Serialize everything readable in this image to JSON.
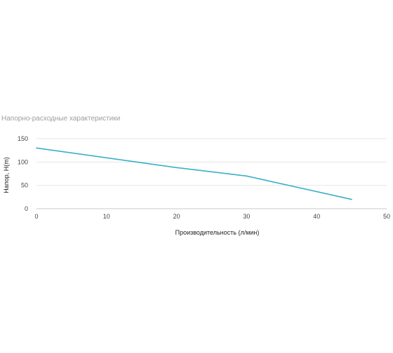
{
  "chart_data": {
    "type": "line",
    "title": "Напорно-расходные характеристики",
    "xlabel": "Производительность (л/мин)",
    "ylabel": "Напор, H(m)",
    "xlim": [
      0,
      50
    ],
    "ylim": [
      0,
      150
    ],
    "x_ticks": [
      0,
      10,
      20,
      30,
      40,
      50
    ],
    "y_ticks": [
      0,
      50,
      100,
      150
    ],
    "grid": "horizontal",
    "legend": "none",
    "series": [
      {
        "color": "#3bafc9",
        "points": [
          {
            "x": 0,
            "y": 130
          },
          {
            "x": 10,
            "y": 109
          },
          {
            "x": 20,
            "y": 88
          },
          {
            "x": 30,
            "y": 70
          },
          {
            "x": 45,
            "y": 20
          }
        ]
      }
    ],
    "colors": {
      "gridline": "#e6e6e6",
      "baseline": "#c8c8c8",
      "tick_text": "#444444",
      "title_text": "#9e9e9e"
    }
  }
}
